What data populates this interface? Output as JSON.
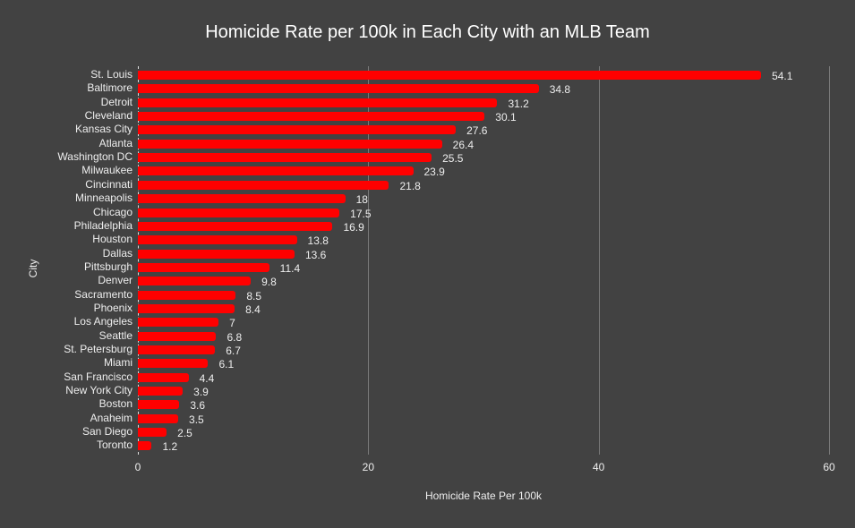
{
  "chart_data": {
    "type": "bar",
    "orientation": "horizontal",
    "title": "Homicide Rate per 100k in Each City with an MLB Team",
    "xlabel": "Homicide Rate Per 100k",
    "ylabel": "City",
    "xlim": [
      0,
      60
    ],
    "xticks": [
      0,
      20,
      40,
      60
    ],
    "grid": true,
    "bar_color": "#ff0000",
    "background": "#424242",
    "categories": [
      "St. Louis",
      "Baltimore",
      "Detroit",
      "Cleveland",
      "Kansas City",
      "Atlanta",
      "Washington DC",
      "Milwaukee",
      "Cincinnati",
      "Minneapolis",
      "Chicago",
      "Philadelphia",
      "Houston",
      "Dallas",
      "Pittsburgh",
      "Denver",
      "Sacramento",
      "Phoenix",
      "Los Angeles",
      "Seattle",
      "St. Petersburg",
      "Miami",
      "San Francisco",
      "New York City",
      "Boston",
      "Anaheim",
      "San Diego",
      "Toronto"
    ],
    "values": [
      54.1,
      34.8,
      31.2,
      30.1,
      27.6,
      26.4,
      25.5,
      23.9,
      21.8,
      18,
      17.5,
      16.9,
      13.8,
      13.6,
      11.4,
      9.8,
      8.5,
      8.4,
      7,
      6.8,
      6.7,
      6.1,
      4.4,
      3.9,
      3.6,
      3.5,
      2.5,
      1.2
    ],
    "labels": [
      "54.1",
      "34.8",
      "31.2",
      "30.1",
      "27.6",
      "26.4",
      "25.5",
      "23.9",
      "21.8",
      "18",
      "17.5",
      "16.9",
      "13.8",
      "13.6",
      "11.4",
      "9.8",
      "8.5",
      "8.4",
      "7",
      "6.8",
      "6.7",
      "6.1",
      "4.4",
      "3.9",
      "3.6",
      "3.5",
      "2.5",
      "1.2"
    ]
  }
}
